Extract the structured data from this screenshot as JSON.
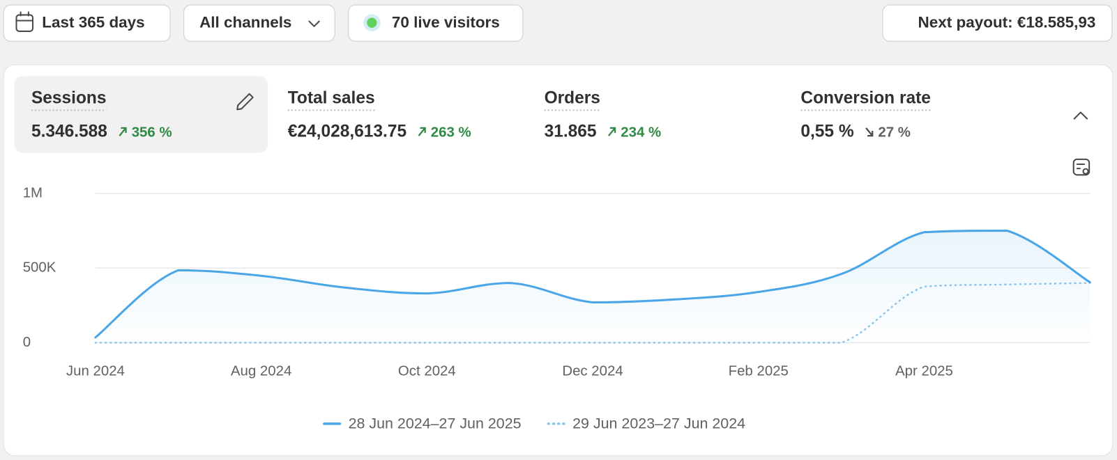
{
  "toolbar": {
    "date_range": "Last 365 days",
    "channels": "All channels",
    "live_visitors": "70 live visitors",
    "payout": "Next payout: €18.585,93"
  },
  "metrics": [
    {
      "label": "Sessions",
      "value": "5.346.588",
      "change": "356 %"
    },
    {
      "label": "Total sales",
      "value": "€24,028,613.75",
      "change": "263 %"
    },
    {
      "label": "Orders",
      "value": "31.865",
      "change": "234 %"
    },
    {
      "label": "Conversion rate",
      "value": "0,55 %",
      "change": "27 %"
    }
  ],
  "chart_data": {
    "type": "line",
    "categories": [
      "Jun 2024",
      null,
      "Aug 2024",
      null,
      "Oct 2024",
      null,
      "Dec 2024",
      null,
      "Feb 2025",
      null,
      "Apr 2025",
      null,
      null
    ],
    "series": [
      {
        "name": "28 Jun 2024–27 Jun 2025",
        "color": "#4aa6e6",
        "style": "solid",
        "values": [
          35000,
          485000,
          448000,
          370000,
          330000,
          400000,
          270000,
          290000,
          340000,
          460000,
          740000,
          750000,
          405000
        ]
      },
      {
        "name": "29 Jun 2023–27 Jun 2024",
        "color": "#8cc6ec",
        "style": "dotted",
        "values": [
          0,
          0,
          0,
          0,
          0,
          0,
          0,
          0,
          0,
          0,
          376000,
          390000,
          400000
        ]
      }
    ],
    "ylim": [
      0,
      1000000
    ],
    "yticks": [
      0,
      {
        "value": 500000,
        "label": "500K"
      },
      {
        "value": 1000000,
        "label": "1M"
      }
    ],
    "grid": true
  }
}
